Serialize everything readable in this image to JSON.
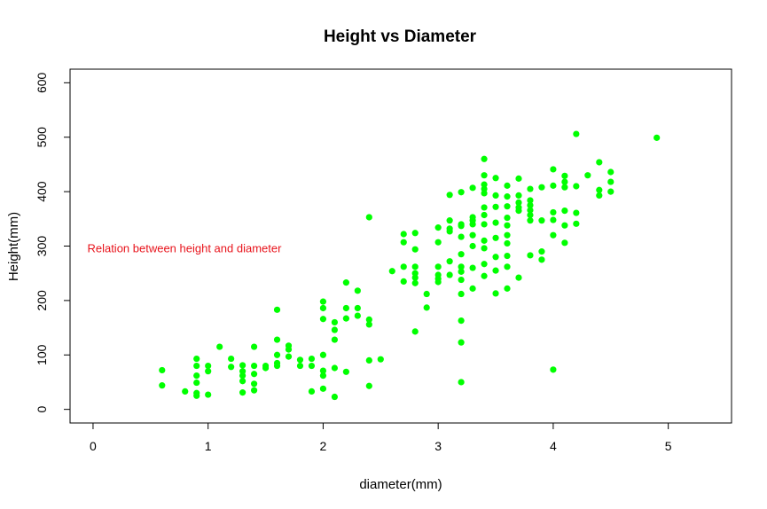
{
  "chart_data": {
    "type": "scatter",
    "title": "Height vs Diameter",
    "xlabel": "diameter(mm)",
    "ylabel": "Height(mm)",
    "xlim": [
      -0.2,
      5.55
    ],
    "ylim": [
      -25,
      625
    ],
    "x_ticks": [
      0,
      1,
      2,
      3,
      4,
      5
    ],
    "y_ticks": [
      0,
      100,
      200,
      300,
      400,
      500,
      600
    ],
    "grid": false,
    "point_color": "#00ff00",
    "annotation": {
      "text": "Relation between height and diameter",
      "color": "#e8141c",
      "x": -0.05,
      "y": 297
    },
    "points": [
      [
        0.6,
        72
      ],
      [
        0.6,
        44
      ],
      [
        0.8,
        33
      ],
      [
        0.9,
        93
      ],
      [
        0.9,
        80
      ],
      [
        0.9,
        62
      ],
      [
        0.9,
        49
      ],
      [
        0.9,
        30
      ],
      [
        0.9,
        25
      ],
      [
        1.0,
        80
      ],
      [
        1.0,
        70
      ],
      [
        1.0,
        27
      ],
      [
        1.1,
        115
      ],
      [
        1.2,
        93
      ],
      [
        1.2,
        78
      ],
      [
        1.3,
        81
      ],
      [
        1.3,
        70
      ],
      [
        1.3,
        62
      ],
      [
        1.3,
        52
      ],
      [
        1.3,
        31
      ],
      [
        1.4,
        115
      ],
      [
        1.4,
        80
      ],
      [
        1.4,
        65
      ],
      [
        1.4,
        47
      ],
      [
        1.4,
        35
      ],
      [
        1.5,
        80
      ],
      [
        1.5,
        76
      ],
      [
        1.6,
        183
      ],
      [
        1.6,
        128
      ],
      [
        1.6,
        100
      ],
      [
        1.6,
        85
      ],
      [
        1.6,
        80
      ],
      [
        1.7,
        117
      ],
      [
        1.7,
        110
      ],
      [
        1.7,
        97
      ],
      [
        1.8,
        91
      ],
      [
        1.8,
        80
      ],
      [
        1.9,
        93
      ],
      [
        1.9,
        80
      ],
      [
        1.9,
        33
      ],
      [
        2.0,
        198
      ],
      [
        2.0,
        186
      ],
      [
        2.0,
        166
      ],
      [
        2.0,
        100
      ],
      [
        2.0,
        71
      ],
      [
        2.0,
        62
      ],
      [
        2.0,
        38
      ],
      [
        2.1,
        160
      ],
      [
        2.1,
        146
      ],
      [
        2.1,
        128
      ],
      [
        2.1,
        76
      ],
      [
        2.1,
        23
      ],
      [
        2.2,
        233
      ],
      [
        2.2,
        186
      ],
      [
        2.2,
        167
      ],
      [
        2.2,
        69
      ],
      [
        2.3,
        218
      ],
      [
        2.3,
        186
      ],
      [
        2.3,
        172
      ],
      [
        2.4,
        353
      ],
      [
        2.4,
        165
      ],
      [
        2.4,
        156
      ],
      [
        2.4,
        90
      ],
      [
        2.4,
        43
      ],
      [
        2.5,
        92
      ],
      [
        2.6,
        254
      ],
      [
        2.7,
        322
      ],
      [
        2.7,
        307
      ],
      [
        2.7,
        262
      ],
      [
        2.7,
        235
      ],
      [
        2.8,
        324
      ],
      [
        2.8,
        294
      ],
      [
        2.8,
        262
      ],
      [
        2.8,
        250
      ],
      [
        2.8,
        242
      ],
      [
        2.8,
        232
      ],
      [
        2.8,
        143
      ],
      [
        2.9,
        212
      ],
      [
        2.9,
        187
      ],
      [
        3.0,
        334
      ],
      [
        3.0,
        307
      ],
      [
        3.0,
        262
      ],
      [
        3.0,
        247
      ],
      [
        3.0,
        240
      ],
      [
        3.0,
        234
      ],
      [
        3.1,
        394
      ],
      [
        3.1,
        347
      ],
      [
        3.1,
        332
      ],
      [
        3.1,
        327
      ],
      [
        3.1,
        272
      ],
      [
        3.1,
        247
      ],
      [
        3.2,
        399
      ],
      [
        3.2,
        340
      ],
      [
        3.2,
        337
      ],
      [
        3.2,
        317
      ],
      [
        3.2,
        285
      ],
      [
        3.2,
        262
      ],
      [
        3.2,
        253
      ],
      [
        3.2,
        238
      ],
      [
        3.2,
        212
      ],
      [
        3.2,
        163
      ],
      [
        3.2,
        123
      ],
      [
        3.2,
        50
      ],
      [
        3.3,
        407
      ],
      [
        3.3,
        353
      ],
      [
        3.3,
        347
      ],
      [
        3.3,
        340
      ],
      [
        3.3,
        320
      ],
      [
        3.3,
        300
      ],
      [
        3.3,
        260
      ],
      [
        3.3,
        222
      ],
      [
        3.4,
        460
      ],
      [
        3.4,
        430
      ],
      [
        3.4,
        413
      ],
      [
        3.4,
        405
      ],
      [
        3.4,
        397
      ],
      [
        3.4,
        371
      ],
      [
        3.4,
        357
      ],
      [
        3.4,
        340
      ],
      [
        3.4,
        310
      ],
      [
        3.4,
        296
      ],
      [
        3.4,
        267
      ],
      [
        3.4,
        245
      ],
      [
        3.5,
        425
      ],
      [
        3.5,
        393
      ],
      [
        3.5,
        372
      ],
      [
        3.5,
        343
      ],
      [
        3.5,
        315
      ],
      [
        3.5,
        280
      ],
      [
        3.5,
        255
      ],
      [
        3.5,
        213
      ],
      [
        3.6,
        411
      ],
      [
        3.6,
        391
      ],
      [
        3.6,
        373
      ],
      [
        3.6,
        352
      ],
      [
        3.6,
        338
      ],
      [
        3.6,
        320
      ],
      [
        3.6,
        305
      ],
      [
        3.6,
        282
      ],
      [
        3.6,
        262
      ],
      [
        3.6,
        222
      ],
      [
        3.7,
        424
      ],
      [
        3.7,
        393
      ],
      [
        3.7,
        380
      ],
      [
        3.7,
        371
      ],
      [
        3.7,
        365
      ],
      [
        3.7,
        242
      ],
      [
        3.8,
        405
      ],
      [
        3.8,
        384
      ],
      [
        3.8,
        375
      ],
      [
        3.8,
        366
      ],
      [
        3.8,
        357
      ],
      [
        3.8,
        347
      ],
      [
        3.8,
        283
      ],
      [
        3.9,
        408
      ],
      [
        3.9,
        347
      ],
      [
        3.9,
        290
      ],
      [
        3.9,
        275
      ],
      [
        4.0,
        441
      ],
      [
        4.0,
        411
      ],
      [
        4.0,
        362
      ],
      [
        4.0,
        348
      ],
      [
        4.0,
        320
      ],
      [
        4.0,
        73
      ],
      [
        4.1,
        429
      ],
      [
        4.1,
        418
      ],
      [
        4.1,
        408
      ],
      [
        4.1,
        365
      ],
      [
        4.1,
        338
      ],
      [
        4.1,
        306
      ],
      [
        4.2,
        506
      ],
      [
        4.2,
        410
      ],
      [
        4.2,
        361
      ],
      [
        4.2,
        341
      ],
      [
        4.3,
        430
      ],
      [
        4.4,
        454
      ],
      [
        4.4,
        403
      ],
      [
        4.4,
        393
      ],
      [
        4.5,
        436
      ],
      [
        4.5,
        418
      ],
      [
        4.5,
        400
      ],
      [
        4.9,
        499
      ]
    ]
  }
}
